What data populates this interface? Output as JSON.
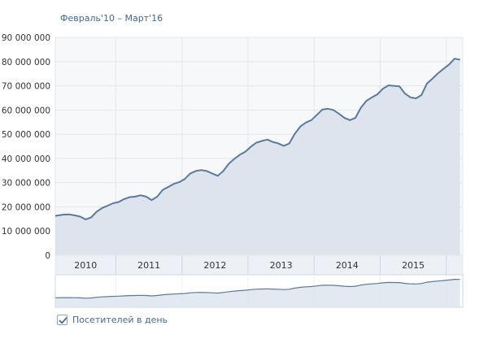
{
  "period": "Февраль'10 – Март'16",
  "legend": {
    "label": "Посетителей в день",
    "checked": true
  },
  "colors": {
    "line": "#5b7a9c",
    "fill": "#dbe3ec",
    "plot_bg": "#f7f8fa",
    "grid": "#e3e7ec",
    "axis_text": "#333333",
    "year_band_bg": "#edf0f4",
    "year_text": "#45688e"
  },
  "chart_data": {
    "type": "area",
    "title": "",
    "xlabel": "",
    "ylabel": "",
    "ylim": [
      0,
      90000000
    ],
    "xlim": [
      "2010-02",
      "2016-03"
    ],
    "y_ticks": [
      0,
      10000000,
      20000000,
      30000000,
      40000000,
      50000000,
      60000000,
      70000000,
      80000000,
      90000000
    ],
    "y_tick_labels": [
      "0",
      "10 000 000",
      "20 000 000",
      "30 000 000",
      "40 000 000",
      "50 000 000",
      "60 000 000",
      "70 000 000",
      "80 000 000",
      "90 000 000"
    ],
    "year_labels": [
      "2010",
      "2011",
      "2012",
      "2013",
      "2014",
      "2015"
    ],
    "grid": true,
    "series": [
      {
        "name": "Посетителей в день",
        "points": [
          [
            "2010-02",
            16300000
          ],
          [
            "2010-03",
            16800000
          ],
          [
            "2010-04",
            16900000
          ],
          [
            "2010-05",
            16500000
          ],
          [
            "2010-06",
            16000000
          ],
          [
            "2010-07",
            14800000
          ],
          [
            "2010-08",
            15600000
          ],
          [
            "2010-09",
            18000000
          ],
          [
            "2010-10",
            19500000
          ],
          [
            "2010-11",
            20500000
          ],
          [
            "2010-12",
            21500000
          ],
          [
            "2011-01",
            22000000
          ],
          [
            "2011-02",
            23200000
          ],
          [
            "2011-03",
            24000000
          ],
          [
            "2011-04",
            24200000
          ],
          [
            "2011-05",
            24800000
          ],
          [
            "2011-06",
            24200000
          ],
          [
            "2011-07",
            22800000
          ],
          [
            "2011-08",
            24200000
          ],
          [
            "2011-09",
            27000000
          ],
          [
            "2011-10",
            28200000
          ],
          [
            "2011-11",
            29500000
          ],
          [
            "2011-12",
            30200000
          ],
          [
            "2012-01",
            31500000
          ],
          [
            "2012-02",
            33800000
          ],
          [
            "2012-03",
            34800000
          ],
          [
            "2012-04",
            35200000
          ],
          [
            "2012-05",
            34800000
          ],
          [
            "2012-06",
            33800000
          ],
          [
            "2012-07",
            32800000
          ],
          [
            "2012-08",
            34800000
          ],
          [
            "2012-09",
            37800000
          ],
          [
            "2012-10",
            39800000
          ],
          [
            "2012-11",
            41500000
          ],
          [
            "2012-12",
            42800000
          ],
          [
            "2013-01",
            44800000
          ],
          [
            "2013-02",
            46500000
          ],
          [
            "2013-03",
            47200000
          ],
          [
            "2013-04",
            47800000
          ],
          [
            "2013-05",
            46800000
          ],
          [
            "2013-06",
            46200000
          ],
          [
            "2013-07",
            45200000
          ],
          [
            "2013-08",
            46200000
          ],
          [
            "2013-09",
            50200000
          ],
          [
            "2013-10",
            53200000
          ],
          [
            "2013-11",
            54800000
          ],
          [
            "2013-12",
            55800000
          ],
          [
            "2014-01",
            58000000
          ],
          [
            "2014-02",
            60200000
          ],
          [
            "2014-03",
            60500000
          ],
          [
            "2014-04",
            60000000
          ],
          [
            "2014-05",
            58500000
          ],
          [
            "2014-06",
            56800000
          ],
          [
            "2014-07",
            55800000
          ],
          [
            "2014-08",
            56800000
          ],
          [
            "2014-09",
            61000000
          ],
          [
            "2014-10",
            63800000
          ],
          [
            "2014-11",
            65200000
          ],
          [
            "2014-12",
            66500000
          ],
          [
            "2015-01",
            68800000
          ],
          [
            "2015-02",
            70200000
          ],
          [
            "2015-03",
            70000000
          ],
          [
            "2015-04",
            69800000
          ],
          [
            "2015-05",
            66800000
          ],
          [
            "2015-06",
            65200000
          ],
          [
            "2015-07",
            64800000
          ],
          [
            "2015-08",
            66200000
          ],
          [
            "2015-09",
            71000000
          ],
          [
            "2015-10",
            73000000
          ],
          [
            "2015-11",
            75200000
          ],
          [
            "2015-12",
            77000000
          ],
          [
            "2016-01",
            78800000
          ],
          [
            "2016-02",
            81200000
          ],
          [
            "2016-03",
            80800000
          ]
        ]
      }
    ]
  }
}
